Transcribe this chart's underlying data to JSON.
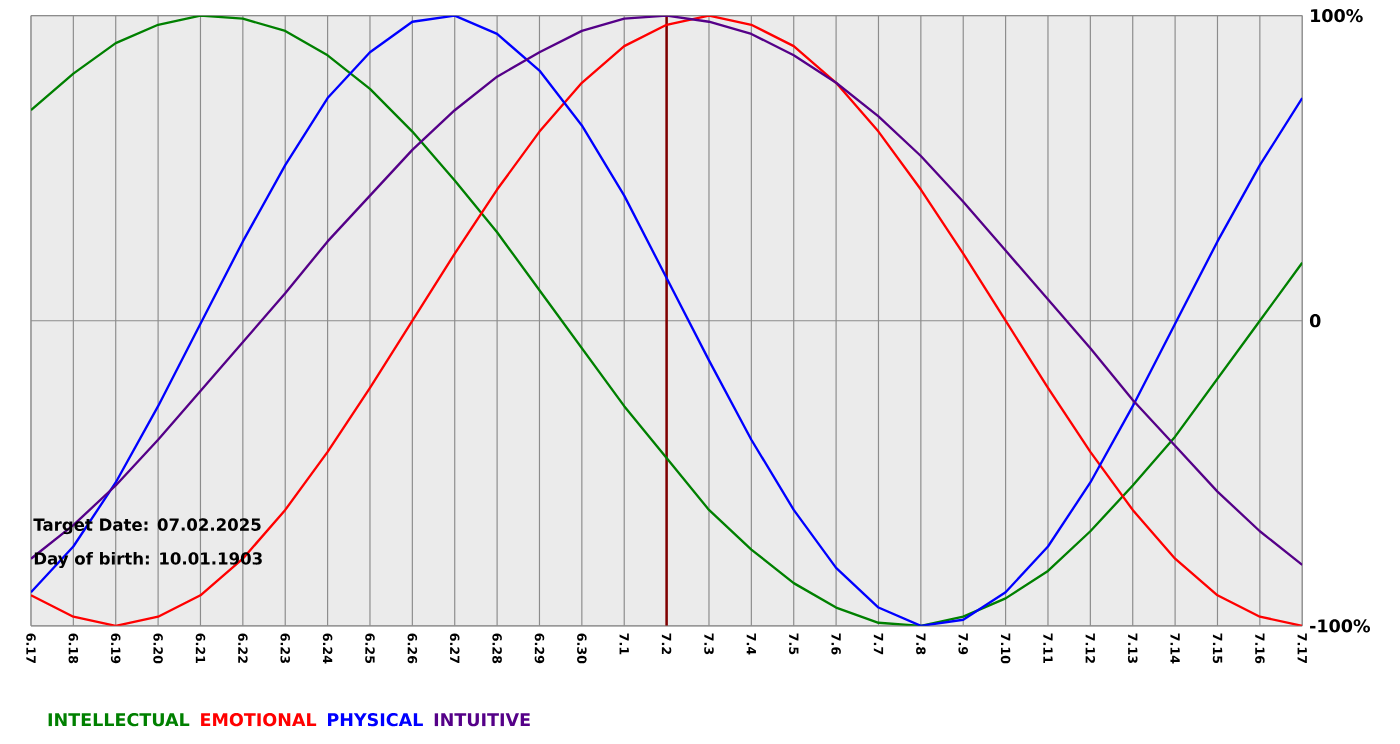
{
  "chart_data": {
    "type": "line",
    "categories": [
      "6.17",
      "6.18",
      "6.19",
      "6.20",
      "6.21",
      "6.22",
      "6.23",
      "6.24",
      "6.25",
      "6.26",
      "6.27",
      "6.28",
      "6.29",
      "6.30",
      "7.1",
      "7.2",
      "7.3",
      "7.4",
      "7.5",
      "7.6",
      "7.7",
      "7.8",
      "7.9",
      "7.10",
      "7.11",
      "7.12",
      "7.13",
      "7.14",
      "7.15",
      "7.16",
      "7.17"
    ],
    "series": [
      {
        "name": "INTELLECTUAL",
        "color": "#008000",
        "values": [
          69,
          81,
          91,
          97,
          100,
          99,
          95,
          87,
          76,
          62,
          46,
          29,
          10,
          -9,
          -28,
          -45,
          -62,
          -75,
          -86,
          -94,
          -99,
          -100,
          -97,
          -91,
          -82,
          -69,
          -54,
          -38,
          -19,
          0,
          19
        ]
      },
      {
        "name": "EMOTIONAL",
        "color": "#ff0000",
        "values": [
          -90,
          -97,
          -100,
          -97,
          -90,
          -78,
          -62,
          -43,
          -22,
          0,
          22,
          43,
          62,
          78,
          90,
          97,
          100,
          97,
          90,
          78,
          62,
          43,
          22,
          0,
          -22,
          -43,
          -62,
          -78,
          -90,
          -97,
          -100
        ]
      },
      {
        "name": "PHYSICAL",
        "color": "#0000ff",
        "values": [
          -89,
          -74,
          -53,
          -28,
          -1,
          26,
          51,
          73,
          88,
          98,
          100,
          94,
          82,
          64,
          41,
          14,
          -13,
          -39,
          -62,
          -81,
          -94,
          -100,
          -98,
          -89,
          -74,
          -53,
          -28,
          -1,
          26,
          51,
          73
        ]
      },
      {
        "name": "INTUITIVE",
        "color": "#550088",
        "values": [
          -78,
          -67,
          -54,
          -39,
          -23,
          -7,
          9,
          26,
          41,
          56,
          69,
          80,
          88,
          95,
          99,
          100,
          98,
          94,
          87,
          78,
          67,
          54,
          39,
          23,
          7,
          -9,
          -26,
          -41,
          -56,
          -69,
          -80
        ]
      }
    ],
    "ylim": [
      -100,
      100
    ],
    "yticks": [
      {
        "value": -100,
        "label": "-100%"
      },
      0,
      {
        "value": 100,
        "label": "100%"
      }
    ],
    "grid": true,
    "legend": "bottom",
    "ref_lines": [
      {
        "axis": "x",
        "value": "7.2",
        "color": "#800000"
      }
    ],
    "annotations": [
      "Target Date: 07.02.2025",
      "Day of birth: 10.01.1903"
    ]
  }
}
